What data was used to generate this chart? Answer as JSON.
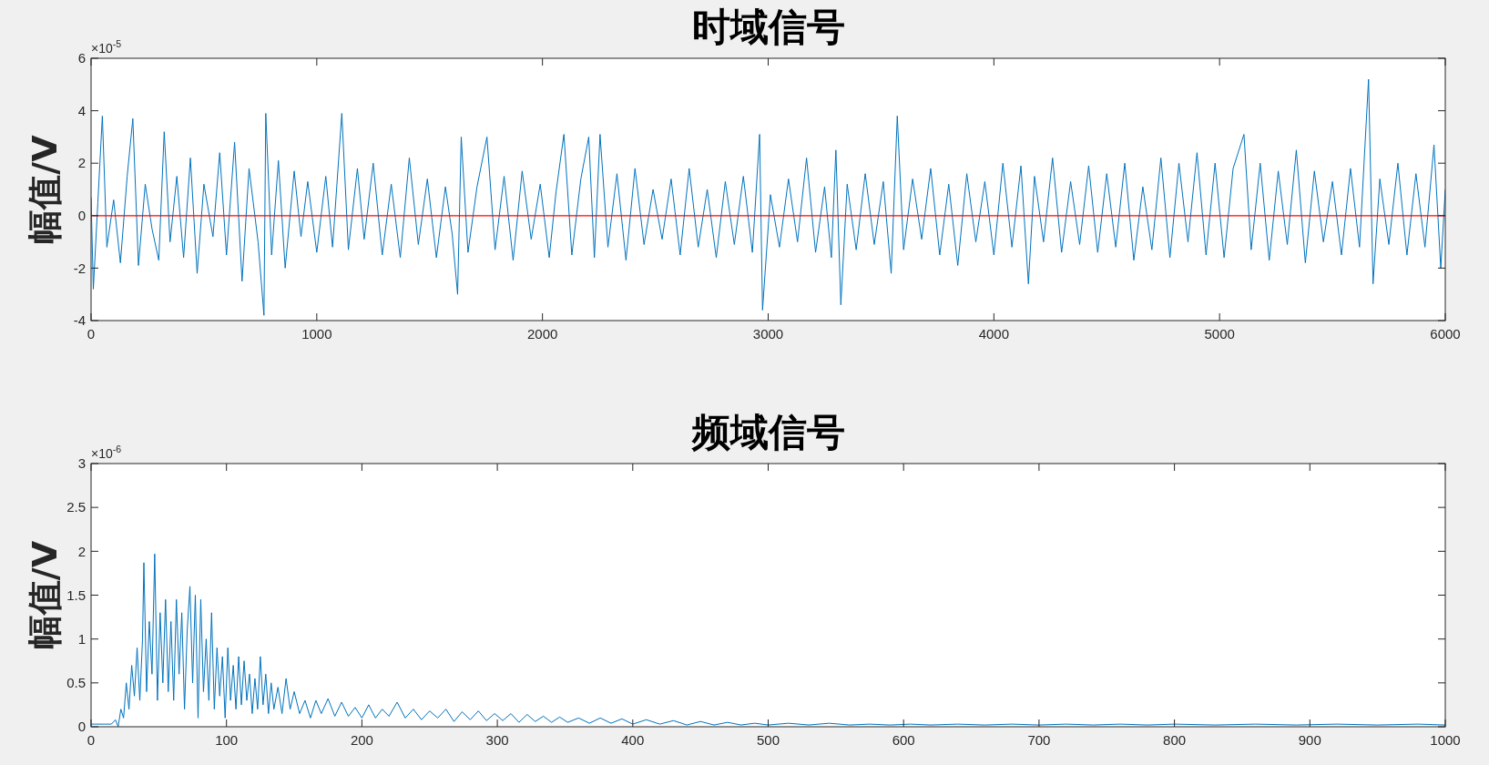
{
  "chart_data": [
    {
      "type": "line",
      "title": "时域信号",
      "ylabel": "幅值/V",
      "annotations": [
        "×10$^{-5}$"
      ],
      "xlim": [
        0,
        6000
      ],
      "xticks": [
        0,
        1000,
        2000,
        3000,
        4000,
        5000,
        6000
      ],
      "ylim": [
        -4,
        6
      ],
      "yticks": [
        -4,
        -2,
        0,
        2,
        4,
        6
      ],
      "grid": false,
      "marker": "none",
      "line_style": "solid",
      "ref_lines": [
        {
          "axis": "y",
          "value": 0,
          "color": "#ff0000"
        }
      ],
      "series": [
        {
          "color": "#0072bd",
          "x": [
            0,
            10,
            30,
            50,
            70,
            100,
            130,
            160,
            185,
            210,
            240,
            270,
            300,
            324,
            350,
            380,
            410,
            440,
            470,
            500,
            540,
            570,
            600,
            636,
            669,
            700,
            740,
            766,
            774,
            800,
            830,
            860,
            900,
            930,
            960,
            1000,
            1040,
            1070,
            1111,
            1140,
            1180,
            1210,
            1250,
            1290,
            1330,
            1370,
            1410,
            1450,
            1490,
            1530,
            1570,
            1600,
            1624,
            1640,
            1670,
            1710,
            1754,
            1790,
            1830,
            1870,
            1910,
            1950,
            1990,
            2030,
            2060,
            2095,
            2130,
            2170,
            2205,
            2230,
            2255,
            2290,
            2330,
            2370,
            2410,
            2450,
            2490,
            2530,
            2570,
            2610,
            2650,
            2690,
            2730,
            2770,
            2810,
            2850,
            2890,
            2930,
            2962,
            2975,
            3010,
            3050,
            3090,
            3130,
            3170,
            3210,
            3250,
            3280,
            3300,
            3322,
            3350,
            3390,
            3430,
            3470,
            3510,
            3545,
            3572,
            3600,
            3640,
            3680,
            3720,
            3760,
            3800,
            3840,
            3880,
            3920,
            3960,
            4000,
            4040,
            4080,
            4120,
            4153,
            4180,
            4220,
            4260,
            4300,
            4340,
            4380,
            4420,
            4460,
            4500,
            4540,
            4580,
            4620,
            4660,
            4700,
            4740,
            4780,
            4820,
            4860,
            4900,
            4940,
            4980,
            5020,
            5060,
            5108,
            5140,
            5180,
            5220,
            5260,
            5300,
            5340,
            5380,
            5420,
            5460,
            5500,
            5540,
            5580,
            5620,
            5660,
            5680,
            5710,
            5750,
            5790,
            5830,
            5870,
            5910,
            5950,
            5980,
            6000
          ],
          "values": [
            0.7,
            -2.8,
            0.5,
            3.8,
            -1.2,
            0.6,
            -1.8,
            1.5,
            3.7,
            -1.9,
            1.2,
            -0.5,
            -1.7,
            3.2,
            -1.0,
            1.5,
            -1.6,
            2.2,
            -2.2,
            1.2,
            -0.8,
            2.4,
            -1.5,
            2.8,
            -2.5,
            1.8,
            -1.0,
            -3.8,
            3.9,
            -1.5,
            2.1,
            -2.0,
            1.7,
            -0.8,
            1.3,
            -1.4,
            1.5,
            -1.2,
            3.9,
            -1.3,
            1.8,
            -0.9,
            2.0,
            -1.5,
            1.2,
            -1.6,
            2.2,
            -1.1,
            1.4,
            -1.6,
            1.1,
            -0.7,
            -3.0,
            3.0,
            -1.4,
            1.1,
            3.0,
            -1.3,
            1.5,
            -1.7,
            1.7,
            -0.9,
            1.2,
            -1.6,
            0.9,
            3.1,
            -1.5,
            1.4,
            3.0,
            -1.6,
            3.1,
            -1.2,
            1.6,
            -1.7,
            1.8,
            -1.1,
            1.0,
            -0.9,
            1.4,
            -1.5,
            1.8,
            -1.2,
            1.0,
            -1.6,
            1.3,
            -1.1,
            1.5,
            -1.4,
            3.1,
            -3.6,
            0.8,
            -1.2,
            1.4,
            -1.0,
            2.2,
            -1.4,
            1.1,
            -1.6,
            2.5,
            -3.4,
            1.2,
            -1.3,
            1.6,
            -1.1,
            1.3,
            -2.2,
            3.8,
            -1.3,
            1.4,
            -0.9,
            1.8,
            -1.5,
            1.2,
            -1.9,
            1.6,
            -1.0,
            1.3,
            -1.5,
            2.0,
            -1.2,
            1.9,
            -2.6,
            1.5,
            -1.0,
            2.2,
            -1.4,
            1.3,
            -1.1,
            1.9,
            -1.4,
            1.6,
            -1.2,
            2.0,
            -1.7,
            1.1,
            -1.3,
            2.2,
            -1.6,
            2.0,
            -1.0,
            2.4,
            -1.5,
            2.0,
            -1.6,
            1.8,
            3.1,
            -1.3,
            2.0,
            -1.7,
            1.7,
            -1.1,
            2.5,
            -1.8,
            1.7,
            -1.0,
            1.3,
            -1.5,
            1.8,
            -1.2,
            5.2,
            -2.6,
            1.4,
            -1.1,
            2.0,
            -1.5,
            1.6,
            -1.2,
            2.7,
            -2.0,
            1.0
          ]
        }
      ]
    },
    {
      "type": "line",
      "title": "频域信号",
      "ylabel": "幅值/V",
      "annotations": [
        "×10$^{-6}$"
      ],
      "xlim": [
        0,
        1000
      ],
      "xticks": [
        0,
        100,
        200,
        300,
        400,
        500,
        600,
        700,
        800,
        900,
        1000
      ],
      "ylim": [
        0,
        3
      ],
      "yticks": [
        0,
        0.5,
        1,
        1.5,
        2,
        2.5,
        3
      ],
      "grid": false,
      "marker": "none",
      "line_style": "solid",
      "series": [
        {
          "color": "#0072bd",
          "x": [
            0,
            10,
            15,
            18,
            20,
            22,
            24,
            26,
            28,
            30,
            32,
            34,
            36,
            38,
            39,
            41,
            43,
            45,
            47,
            49,
            51,
            53,
            55,
            57,
            59,
            61,
            63,
            65,
            67,
            69,
            71,
            73,
            75,
            77,
            79,
            81,
            83,
            85,
            87,
            89,
            91,
            93,
            95,
            97,
            99,
            101,
            103,
            105,
            107,
            109,
            111,
            113,
            115,
            117,
            119,
            121,
            123,
            125,
            127,
            129,
            131,
            133,
            135,
            138,
            141,
            144,
            147,
            150,
            154,
            158,
            162,
            166,
            170,
            175,
            180,
            185,
            190,
            195,
            200,
            205,
            210,
            215,
            220,
            226,
            232,
            238,
            244,
            250,
            256,
            262,
            268,
            274,
            280,
            286,
            292,
            298,
            304,
            310,
            316,
            322,
            328,
            334,
            340,
            346,
            352,
            360,
            368,
            376,
            384,
            392,
            400,
            410,
            420,
            430,
            440,
            450,
            460,
            470,
            480,
            490,
            500,
            515,
            530,
            545,
            560,
            575,
            590,
            605,
            620,
            640,
            660,
            680,
            700,
            720,
            740,
            760,
            780,
            800,
            830,
            860,
            890,
            920,
            950,
            980,
            1000
          ],
          "values": [
            0.03,
            0.03,
            0.03,
            0.08,
            0.0,
            0.2,
            0.1,
            0.5,
            0.2,
            0.7,
            0.35,
            0.9,
            0.3,
            1.0,
            1.87,
            0.4,
            1.2,
            0.6,
            1.97,
            0.3,
            1.3,
            0.5,
            1.45,
            0.4,
            1.2,
            0.3,
            1.45,
            0.6,
            1.3,
            0.2,
            1.1,
            1.6,
            0.5,
            1.5,
            0.1,
            1.45,
            0.4,
            1.0,
            0.3,
            1.3,
            0.2,
            0.9,
            0.35,
            0.8,
            0.1,
            0.9,
            0.3,
            0.7,
            0.2,
            0.8,
            0.25,
            0.75,
            0.3,
            0.6,
            0.15,
            0.55,
            0.2,
            0.8,
            0.25,
            0.6,
            0.15,
            0.5,
            0.2,
            0.45,
            0.15,
            0.55,
            0.2,
            0.4,
            0.15,
            0.3,
            0.1,
            0.3,
            0.15,
            0.32,
            0.12,
            0.28,
            0.12,
            0.22,
            0.1,
            0.25,
            0.1,
            0.2,
            0.12,
            0.28,
            0.1,
            0.2,
            0.08,
            0.18,
            0.1,
            0.2,
            0.06,
            0.17,
            0.08,
            0.18,
            0.07,
            0.15,
            0.07,
            0.15,
            0.05,
            0.14,
            0.06,
            0.12,
            0.05,
            0.11,
            0.05,
            0.1,
            0.04,
            0.1,
            0.04,
            0.09,
            0.03,
            0.08,
            0.03,
            0.07,
            0.02,
            0.06,
            0.02,
            0.05,
            0.02,
            0.04,
            0.02,
            0.04,
            0.02,
            0.04,
            0.02,
            0.03,
            0.02,
            0.03,
            0.02,
            0.03,
            0.02,
            0.03,
            0.02,
            0.03,
            0.02,
            0.03,
            0.02,
            0.03,
            0.02,
            0.03,
            0.02,
            0.03,
            0.02,
            0.03,
            0.02
          ]
        }
      ]
    }
  ]
}
